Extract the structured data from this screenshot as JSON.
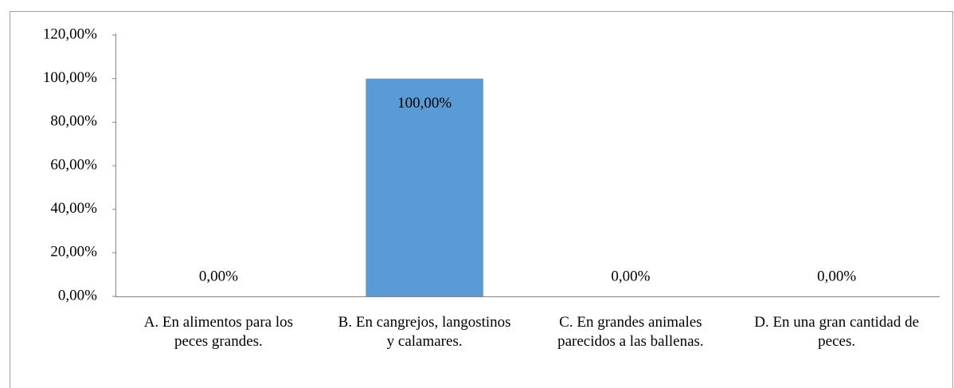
{
  "chart_data": {
    "type": "bar",
    "categories": [
      "A. En alimentos para los peces grandes.",
      "B. En cangrejos, langostinos y calamares.",
      "C. En grandes animales parecidos a las ballenas.",
      "D. En una gran cantidad de peces."
    ],
    "values": [
      0,
      100,
      0,
      0
    ],
    "value_labels": [
      "0,00%",
      "100,00%",
      "0,00%",
      "0,00%"
    ],
    "color": "#5b9bd5",
    "ylim": [
      0,
      120
    ],
    "yticks": [
      {
        "value": 0,
        "label": "0,00%"
      },
      {
        "value": 20,
        "label": "20,00%"
      },
      {
        "value": 40,
        "label": "40,00%"
      },
      {
        "value": 60,
        "label": "60,00%"
      },
      {
        "value": 80,
        "label": "80,00%"
      },
      {
        "value": 100,
        "label": "100,00%"
      },
      {
        "value": 120,
        "label": "120,00%"
      }
    ],
    "grid": false
  }
}
